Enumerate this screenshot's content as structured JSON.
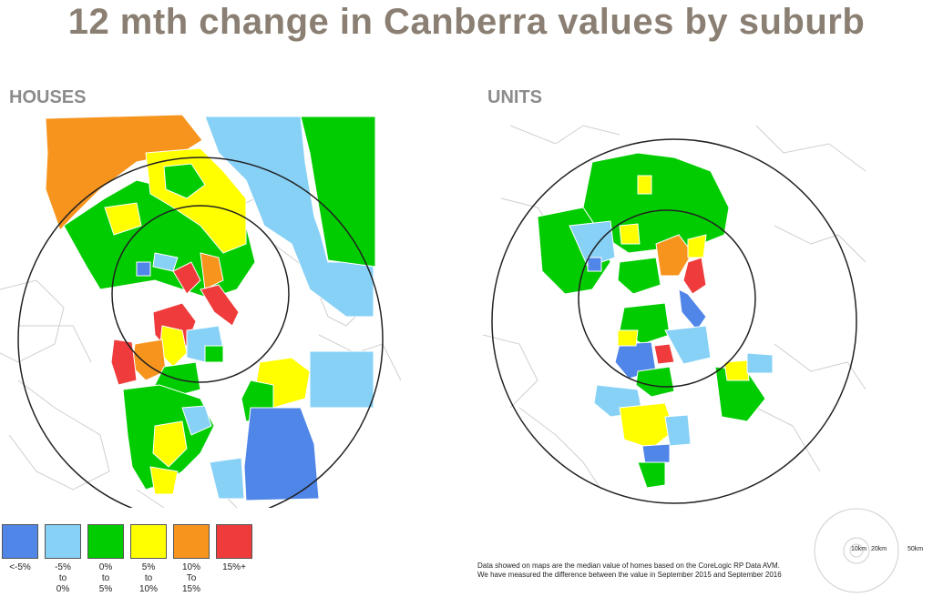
{
  "title": "12 mth change in Canberra values by suburb",
  "maps": {
    "houses_label": "HOUSES",
    "units_label": "UNITS"
  },
  "legend": [
    {
      "label": "<-5%",
      "color": "#4f86e8"
    },
    {
      "label": "-5%\nto\n0%",
      "color": "#87d1f7"
    },
    {
      "label": "0%\nto\n5%",
      "color": "#00cc00"
    },
    {
      "label": "5%\nto\n10%",
      "color": "#ffff00"
    },
    {
      "label": "10%\nTo\n15%",
      "color": "#f7941d"
    },
    {
      "label": "15%+",
      "color": "#ef3b3b"
    }
  ],
  "note": "Data showed on maps are the median value of homes based on the CoreLogic RP Data AVM. We have measured the difference between the value in September 2015 and September 2016",
  "scale": {
    "inner": "10km",
    "middle": "20km",
    "outer": "50km"
  }
}
